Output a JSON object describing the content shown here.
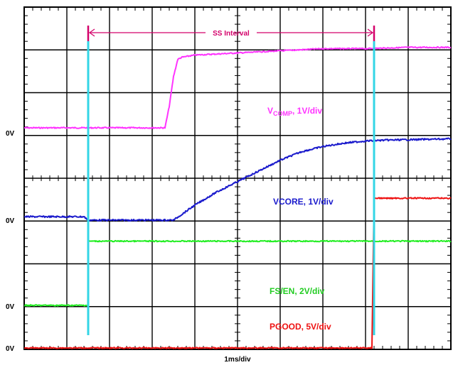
{
  "chart_data": {
    "type": "line",
    "title": "",
    "xlabel": "1ms/div",
    "ylabel": "",
    "x_divisions": 10,
    "y_divisions": 8,
    "x_unit": "ms",
    "xlim": [
      0,
      10
    ],
    "grid": true,
    "annotation": {
      "text": "SS Interval",
      "color": "#d4006a",
      "x_start": 1.5,
      "x_end": 8.2
    },
    "cursors": {
      "color": "#33d6e6",
      "x": [
        1.5,
        8.2
      ]
    },
    "series": [
      {
        "name": "VCOMP",
        "label_main": "V",
        "label_sub": "COMP",
        "label_scale": ", 1V/div",
        "color": "#ff33ff",
        "zero_label": "0V",
        "volts_per_div": 1,
        "x": [
          0,
          1,
          2,
          3,
          3.3,
          3.4,
          3.5,
          3.6,
          3.7,
          4,
          5,
          6,
          7,
          8,
          9,
          10
        ],
        "y": [
          0,
          0,
          0,
          0,
          0,
          0.5,
          1.2,
          1.6,
          1.65,
          1.7,
          1.75,
          1.8,
          1.85,
          1.85,
          1.88,
          1.88
        ]
      },
      {
        "name": "VCORE",
        "label_main": "VCORE, 1V/div",
        "color": "#1a1acc",
        "zero_label": "0V",
        "volts_per_div": 1,
        "x": [
          0,
          1.4,
          1.5,
          2,
          3,
          3.5,
          4,
          4.5,
          5,
          5.5,
          6,
          6.5,
          7,
          7.5,
          8,
          8.5,
          9,
          10
        ],
        "y": [
          0.08,
          0.08,
          0,
          0,
          0,
          0,
          0.35,
          0.65,
          0.9,
          1.15,
          1.4,
          1.6,
          1.72,
          1.8,
          1.85,
          1.87,
          1.88,
          1.9
        ]
      },
      {
        "name": "FS/EN",
        "label_main": "FS/EN, 2V/div",
        "color": "#22ee22",
        "zero_label": "0V",
        "volts_per_div": 2,
        "x": [
          0,
          1.49,
          1.5,
          10
        ],
        "y": [
          0,
          0,
          1.5,
          1.5
        ]
      },
      {
        "name": "PGOOD",
        "label_main": "PGOOD, 5V/div",
        "color": "#ee1111",
        "zero_label": "0V",
        "volts_per_div": 5,
        "x": [
          0,
          8.15,
          8.2,
          10
        ],
        "y": [
          0,
          0,
          3.5,
          3.5
        ]
      }
    ]
  }
}
